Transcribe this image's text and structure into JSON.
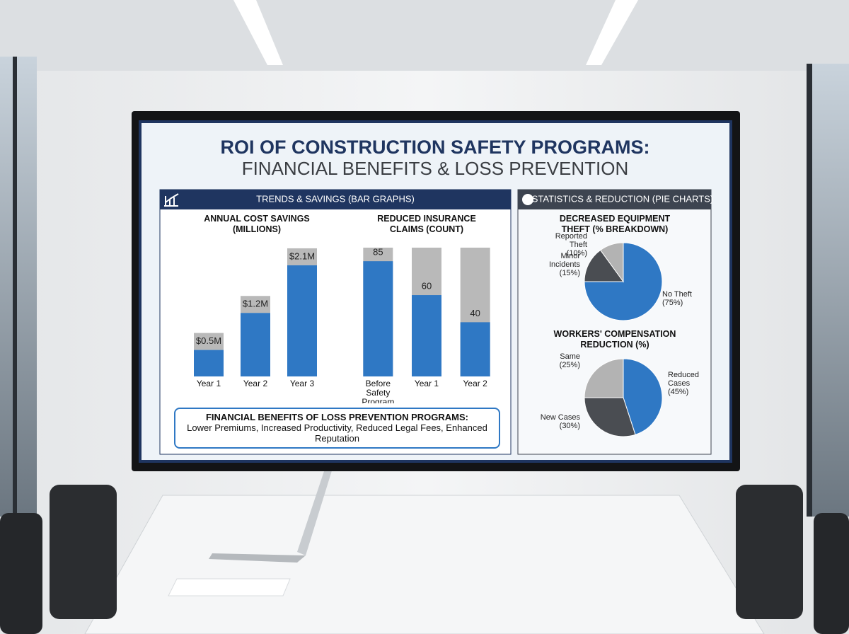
{
  "header": {
    "title": "ROI OF CONSTRUCTION SAFETY PROGRAMS:",
    "subtitle": "FINANCIAL BENEFITS & LOSS PREVENTION"
  },
  "sections": [
    {
      "title": "TRENDS & SAVINGS (BAR GRAPHS)"
    },
    {
      "title": "STATISTICS & REDUCTION (PIE CHARTS)"
    }
  ],
  "footer": {
    "title": "FINANCIAL BENEFITS OF LOSS PREVENTION PROGRAMS:",
    "text": "Lower Premiums, Increased Productivity, Reduced Legal Fees, Enhanced Reputation"
  },
  "chart_data": [
    {
      "type": "bar",
      "title": "ANNUAL COST SAVINGS (MILLIONS)",
      "categories": [
        "Year 1",
        "Year 2",
        "Year 3"
      ],
      "values": [
        0.5,
        1.2,
        2.1
      ],
      "value_labels": [
        "$0.5M",
        "$1.2M",
        "$2.1M"
      ],
      "color": "#2f78c4",
      "label_color": "#b9b9b9",
      "ylim": [
        0,
        2.5
      ]
    },
    {
      "type": "bar",
      "title": "REDUCED INSURANCE CLAIMS (COUNT)",
      "categories": [
        "Before Safety Program",
        "Year 1",
        "Year 2"
      ],
      "values": [
        85,
        60,
        40
      ],
      "color": "#2f78c4",
      "track_color": "#b9b9b9",
      "ylim": [
        0,
        95
      ]
    },
    {
      "type": "pie",
      "title": "DECREASED EQUIPMENT THEFT (% BREAKDOWN)",
      "categories": [
        "No Theft",
        "Minor Incidents",
        "Reported Theft"
      ],
      "values": [
        75,
        15,
        10
      ],
      "value_labels": [
        "(75%)",
        "(15%)",
        "(10%)"
      ],
      "colors": [
        "#2f78c4",
        "#4a4d52",
        "#b3b3b3"
      ]
    },
    {
      "type": "pie",
      "title": "WORKERS' COMPENSATION REDUCTION (%)",
      "categories": [
        "Reduced Cases",
        "New Cases",
        "Same"
      ],
      "values": [
        45,
        30,
        25
      ],
      "value_labels": [
        "(45%)",
        "(30%)",
        "(25%)"
      ],
      "colors": [
        "#2f78c4",
        "#4a4d52",
        "#b3b3b3"
      ]
    }
  ]
}
